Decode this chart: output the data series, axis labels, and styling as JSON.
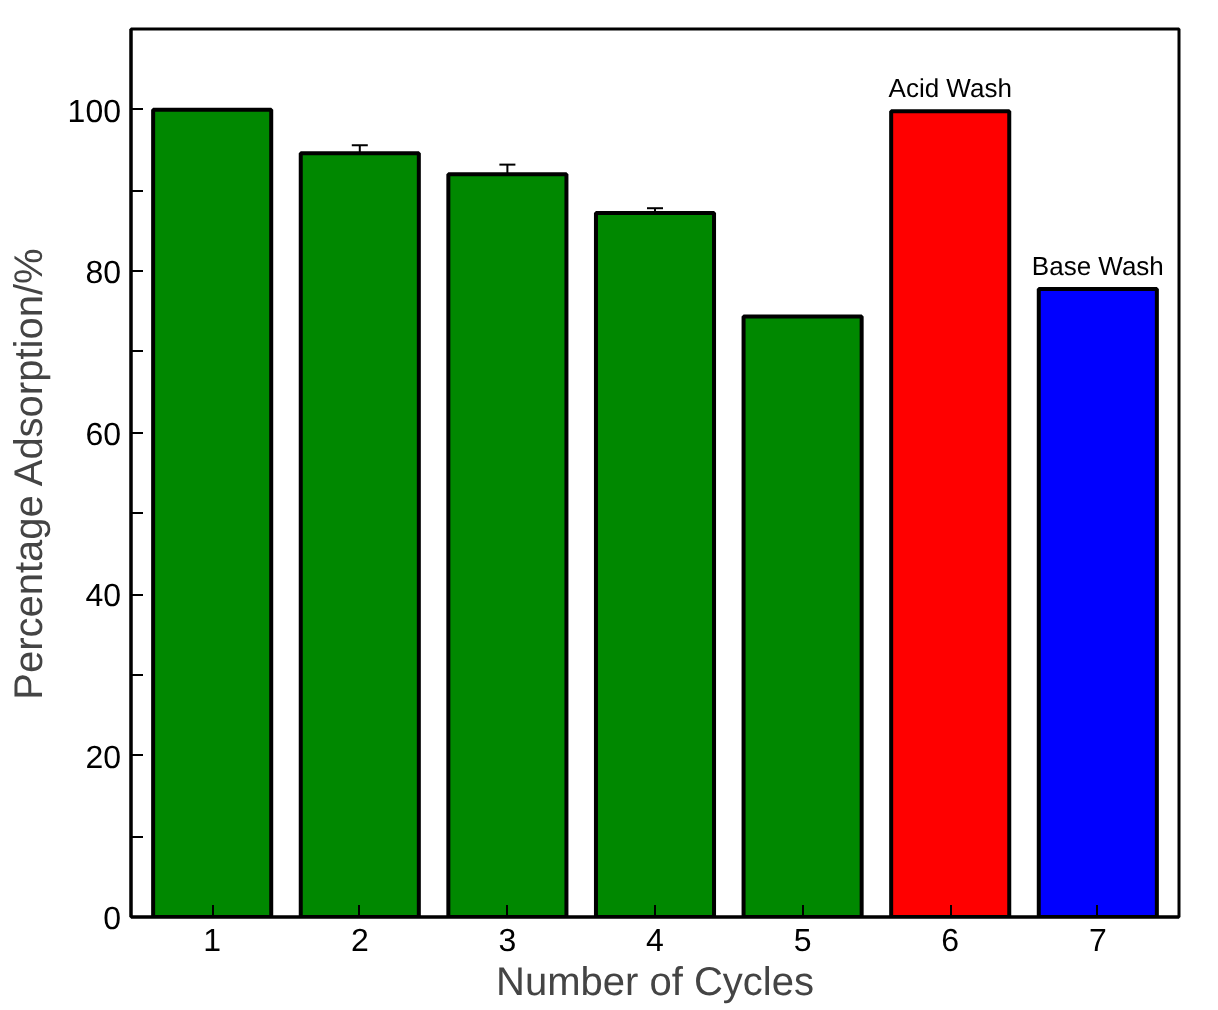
{
  "chart_data": {
    "type": "bar",
    "xlabel": "Number of Cycles",
    "ylabel": "Percentage Adsorption/%",
    "categories": [
      "1",
      "2",
      "3",
      "4",
      "5",
      "6",
      "7"
    ],
    "values": [
      100,
      94.6,
      92.0,
      87.2,
      74.4,
      99.8,
      77.8
    ],
    "colors": [
      "#008800",
      "#008800",
      "#008800",
      "#008800",
      "#008800",
      "#ff0000",
      "#0000ff"
    ],
    "errors": [
      null,
      1.0,
      1.2,
      0.6,
      null,
      null,
      null
    ],
    "ylim": [
      0,
      110
    ],
    "yticks": [
      0,
      {
        "value": 10,
        "label": null
      },
      20,
      {
        "value": 30,
        "label": null
      },
      40,
      {
        "value": 50,
        "label": null
      },
      60,
      {
        "value": 70,
        "label": null
      },
      80,
      {
        "value": 90,
        "label": null
      },
      100
    ],
    "annotations": [
      {
        "text": "Acid Wash",
        "x": "6",
        "y": 99.8
      },
      {
        "text": "Base Wash",
        "x": "7",
        "y": 77.8
      }
    ],
    "grid": false
  }
}
